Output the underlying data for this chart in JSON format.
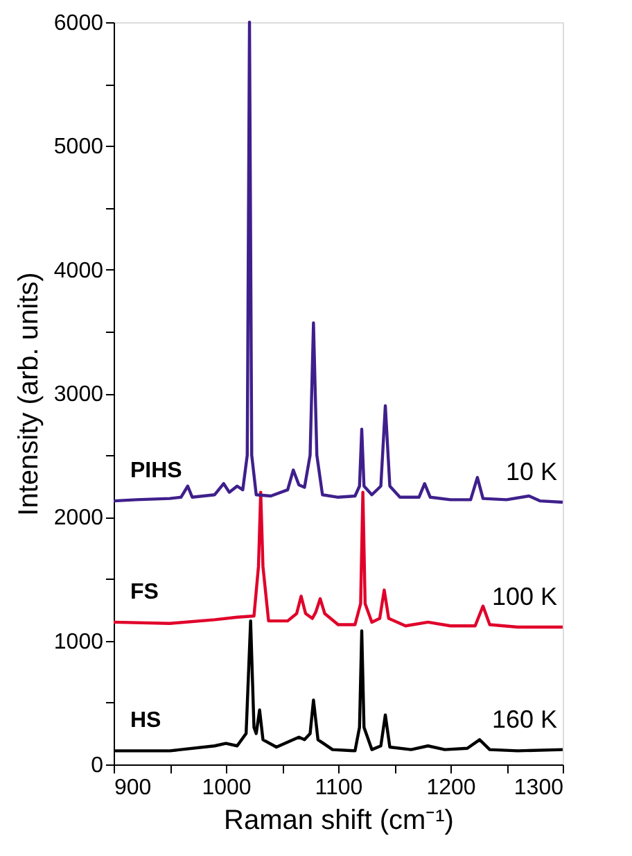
{
  "chart_data": {
    "type": "line",
    "xlabel": "Raman shift (cm⁻¹)",
    "ylabel": "Intensity (arb. units)",
    "xlim": [
      900,
      1300
    ],
    "ylim": [
      0,
      6000
    ],
    "xticks": [
      900,
      {
        "value": 950,
        "label": null
      },
      1000,
      {
        "value": 1050,
        "label": null
      },
      1100,
      {
        "value": 1150,
        "label": null
      },
      1200,
      {
        "value": 1250,
        "label": null
      },
      1300
    ],
    "yticks": [
      0,
      {
        "value": 500,
        "label": null
      },
      1000,
      {
        "value": 1500,
        "label": null
      },
      2000,
      {
        "value": 2500,
        "label": null
      },
      3000,
      {
        "value": 3500,
        "label": null
      },
      4000,
      {
        "value": 4500,
        "label": null
      },
      5000,
      {
        "value": 5500,
        "label": null
      },
      6000
    ],
    "grid": false,
    "legend": false,
    "marker": "none",
    "line_style": "solid",
    "series": [
      {
        "name": "PIHS",
        "color": "#3f1f8c",
        "x": [
          900,
          920,
          950,
          960,
          966,
          970,
          990,
          998,
          1003,
          1010,
          1015,
          1019,
          1021,
          1023,
          1027,
          1040,
          1055,
          1060,
          1065,
          1070,
          1075,
          1078,
          1081,
          1086,
          1100,
          1115,
          1119,
          1121,
          1123,
          1130,
          1138,
          1142,
          1146,
          1155,
          1172,
          1177,
          1182,
          1200,
          1218,
          1224,
          1229,
          1250,
          1270,
          1280,
          1300
        ],
        "values": [
          2130,
          2140,
          2150,
          2160,
          2250,
          2160,
          2180,
          2270,
          2200,
          2250,
          2220,
          2500,
          6000,
          2500,
          2180,
          2170,
          2220,
          2380,
          2260,
          2240,
          2500,
          3570,
          2500,
          2180,
          2160,
          2170,
          2250,
          2710,
          2250,
          2180,
          2250,
          2900,
          2250,
          2160,
          2160,
          2270,
          2160,
          2140,
          2140,
          2320,
          2150,
          2140,
          2170,
          2130,
          2120
        ]
      },
      {
        "name": "FS",
        "color": "#e0002a",
        "x": [
          900,
          950,
          990,
          1010,
          1025,
          1029,
          1031,
          1033,
          1038,
          1055,
          1063,
          1067,
          1071,
          1077,
          1080,
          1084,
          1088,
          1100,
          1115,
          1120,
          1122,
          1124,
          1130,
          1137,
          1141,
          1145,
          1160,
          1180,
          1200,
          1222,
          1229,
          1235,
          1260,
          1300
        ],
        "values": [
          1150,
          1140,
          1170,
          1190,
          1200,
          1600,
          2200,
          1600,
          1160,
          1160,
          1220,
          1360,
          1220,
          1180,
          1230,
          1340,
          1220,
          1130,
          1130,
          1300,
          2200,
          1300,
          1150,
          1180,
          1410,
          1180,
          1120,
          1150,
          1120,
          1120,
          1280,
          1130,
          1110,
          1110
        ]
      },
      {
        "name": "HS",
        "color": "#000000",
        "x": [
          900,
          950,
          990,
          1000,
          1010,
          1018,
          1022,
          1025,
          1027,
          1030,
          1033,
          1045,
          1060,
          1065,
          1070,
          1075,
          1078,
          1082,
          1095,
          1115,
          1119,
          1121,
          1123,
          1130,
          1138,
          1142,
          1146,
          1165,
          1180,
          1195,
          1215,
          1226,
          1235,
          1260,
          1300
        ],
        "values": [
          110,
          110,
          150,
          170,
          150,
          250,
          1160,
          300,
          250,
          440,
          200,
          140,
          200,
          220,
          200,
          250,
          520,
          200,
          120,
          110,
          300,
          1080,
          300,
          120,
          150,
          400,
          140,
          120,
          150,
          120,
          130,
          200,
          120,
          110,
          120
        ]
      }
    ],
    "annotations": [
      "10 K",
      "100 K",
      "160 K"
    ]
  }
}
